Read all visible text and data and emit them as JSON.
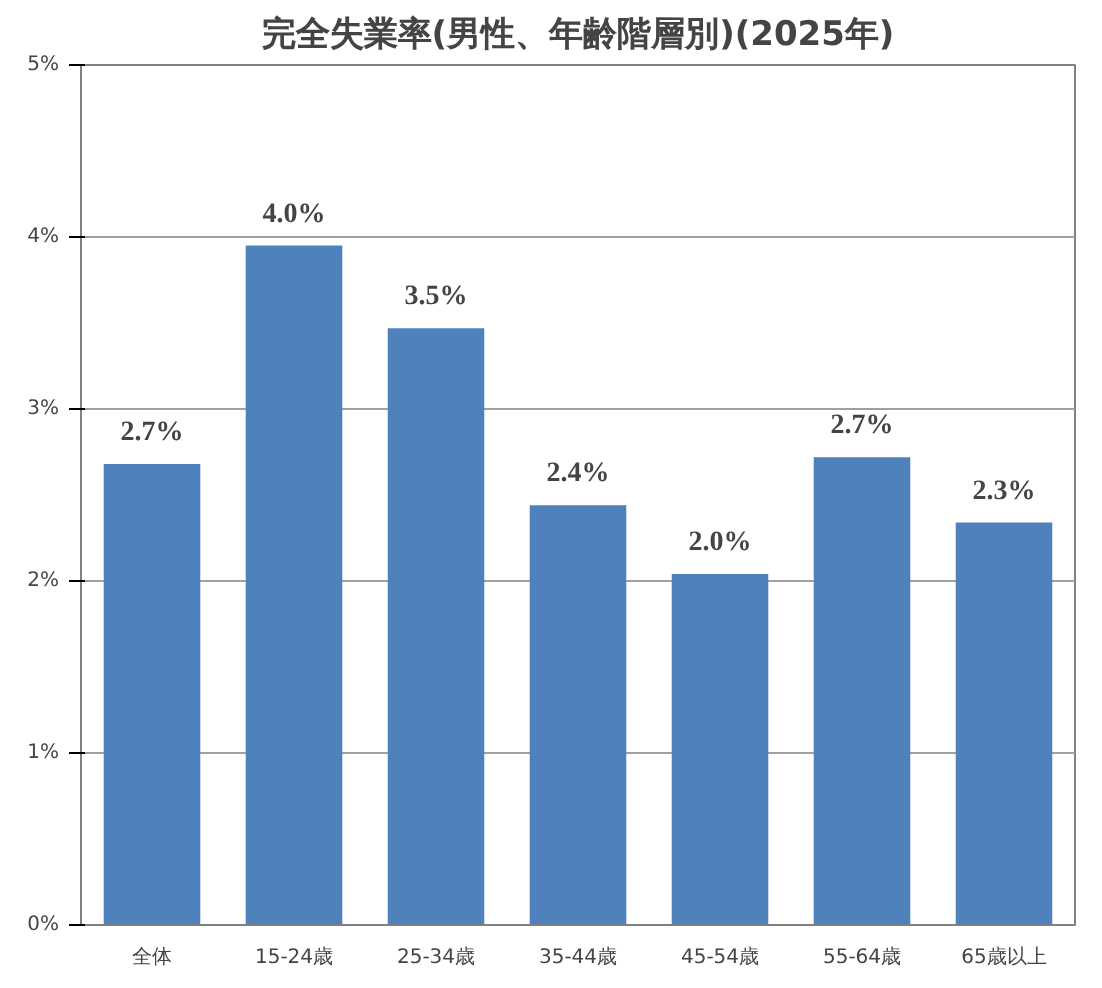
{
  "chart_data": {
    "type": "bar",
    "title": "完全失業率(男性、年齢階層別)(2025年)",
    "categories": [
      "全体",
      "15-24歳",
      "25-34歳",
      "35-44歳",
      "45-54歳",
      "55-64歳",
      "65歳以上"
    ],
    "values": [
      2.68,
      3.95,
      3.47,
      2.44,
      2.04,
      2.72,
      2.34
    ],
    "value_labels": [
      "2.7%",
      "4.0%",
      "3.5%",
      "2.4%",
      "2.0%",
      "2.7%",
      "2.3%"
    ],
    "color": "#4f81bd",
    "ylim": [
      0,
      5
    ],
    "yticks": [
      {
        "value": 0,
        "label": "0%"
      },
      {
        "value": 1,
        "label": "1%"
      },
      {
        "value": 2,
        "label": "2%"
      },
      {
        "value": 3,
        "label": "3%"
      },
      {
        "value": 4,
        "label": "4%"
      },
      {
        "value": 5,
        "label": "5%"
      }
    ],
    "grid": "y"
  }
}
